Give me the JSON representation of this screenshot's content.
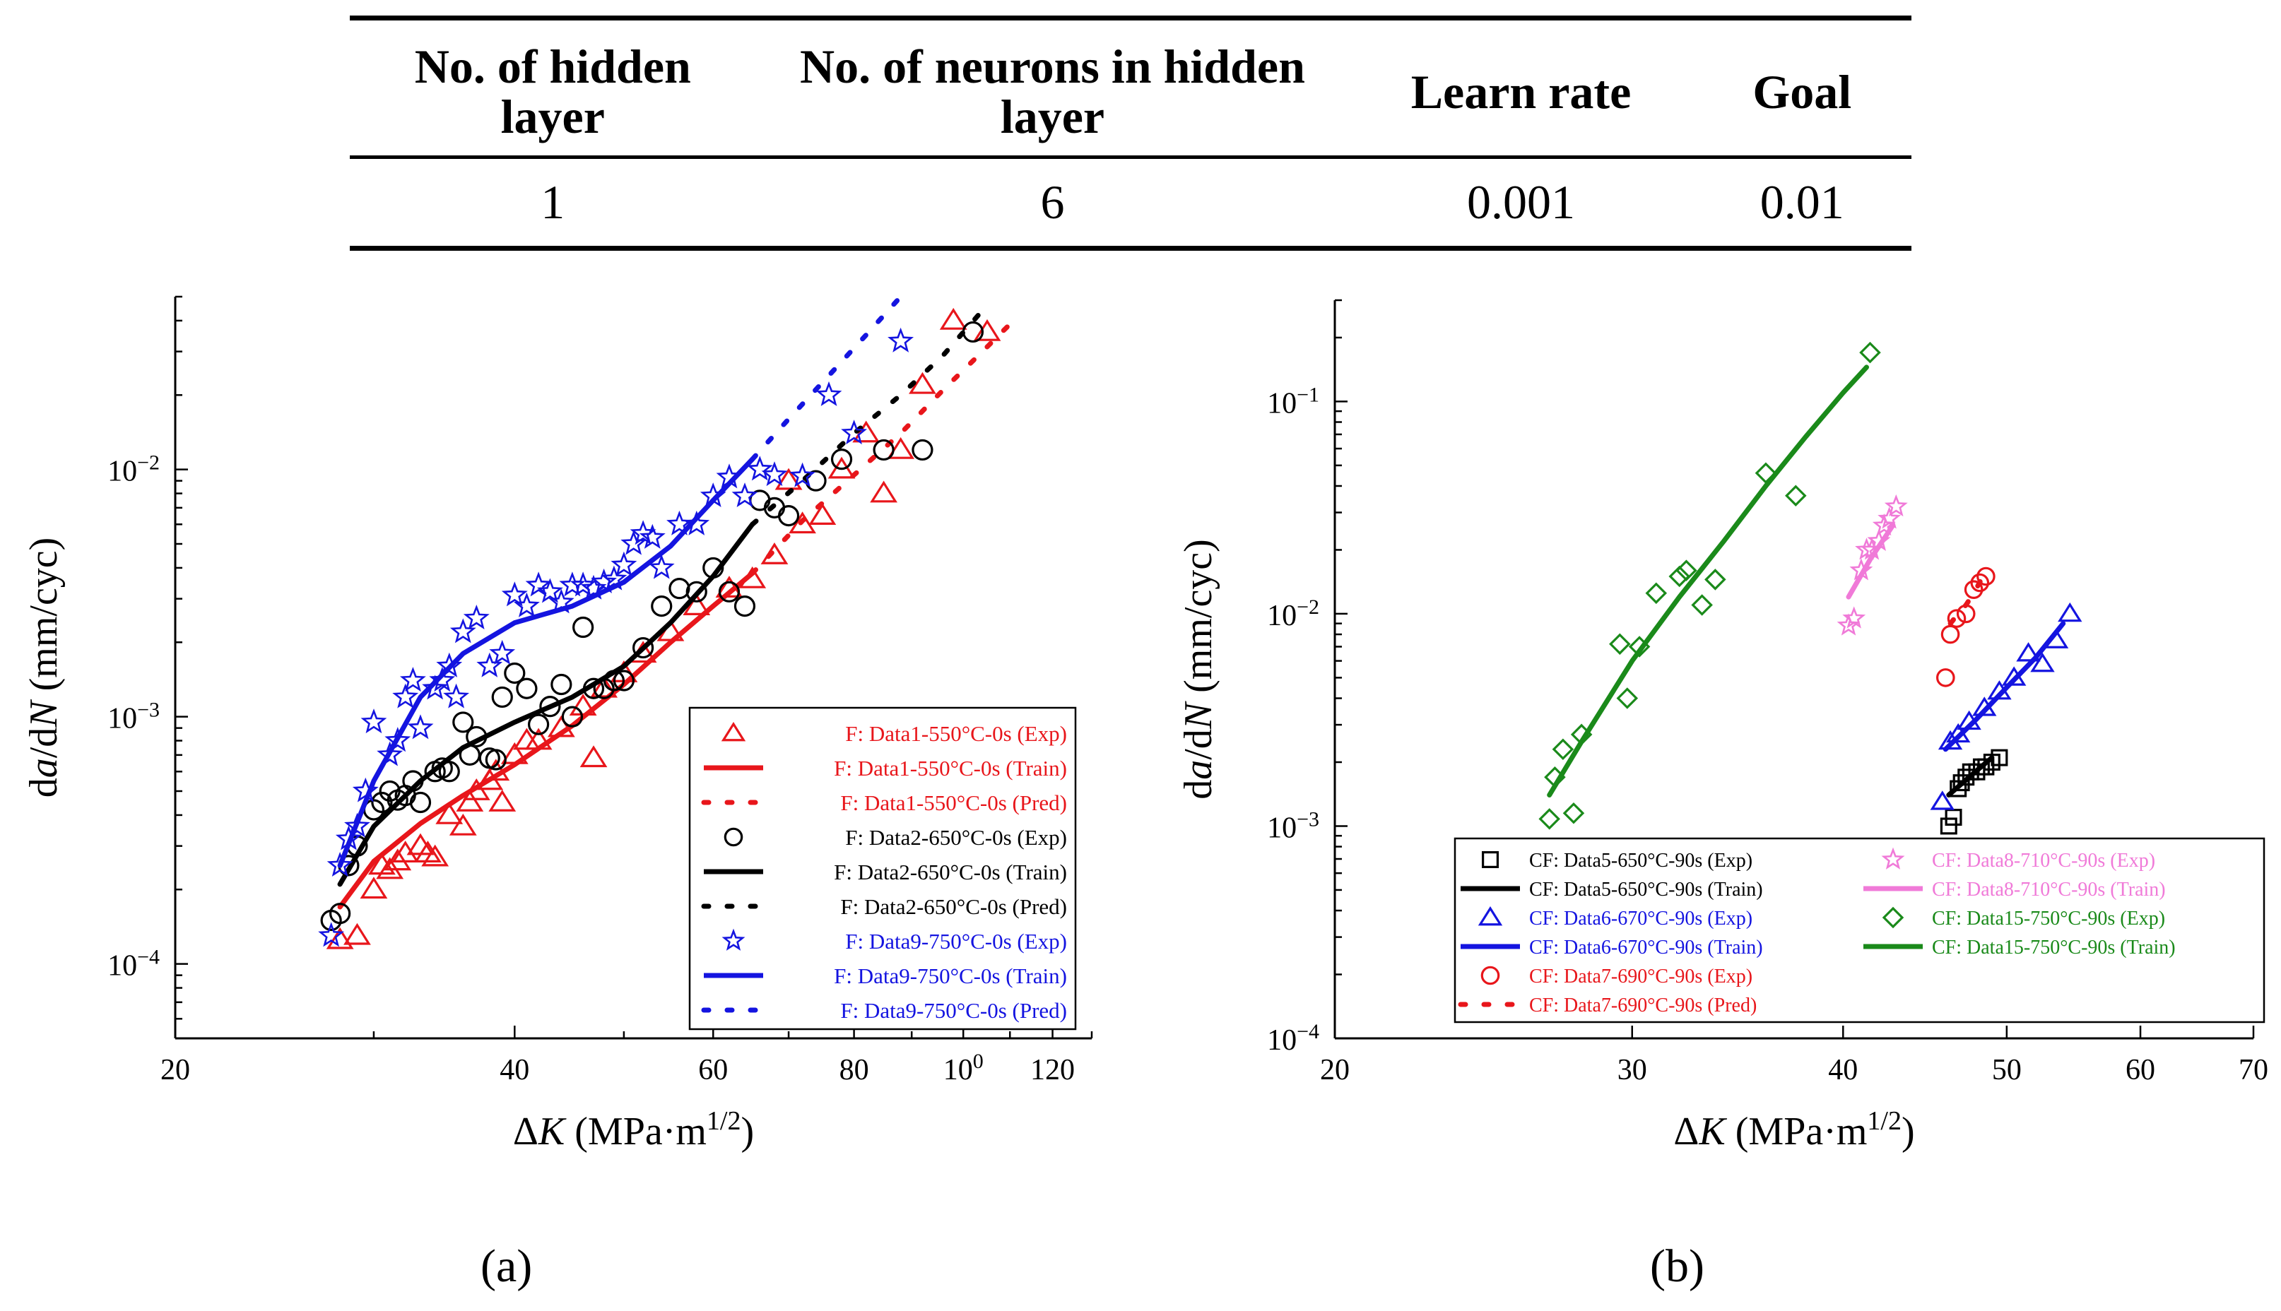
{
  "table": {
    "headers": [
      "No. of hidden layer",
      "No. of neurons in hidden layer",
      "Learn rate",
      "Goal"
    ],
    "row": [
      "1",
      "6",
      "0.001",
      "0.01"
    ]
  },
  "chart_data": [
    {
      "id": "a",
      "type": "scatter",
      "panel_label": "(a)",
      "xscale": "log",
      "yscale": "log",
      "xlim": [
        20,
        130
      ],
      "ylim": [
        5e-05,
        0.05
      ],
      "xticks": [
        20,
        40,
        60,
        80,
        100,
        120
      ],
      "yticks": [
        0.0001,
        0.001,
        0.01
      ],
      "ytick_labels": [
        "10−4",
        "10−3",
        "10−2"
      ],
      "xlabel": "ΔK (MPa·m1/2)",
      "ylabel": "da/dN (mm/cyc)",
      "legend_position": "bottom-right",
      "series": [
        {
          "name": "F: Data1-550°C-0s (Exp)",
          "kind": "scatter",
          "marker": "triangle",
          "color": "#e8161b",
          "x": [
            28,
            29,
            30,
            30.5,
            31,
            31.5,
            32,
            33,
            33.5,
            34,
            35,
            36,
            36.5,
            37,
            38,
            38.5,
            39,
            40,
            41,
            42,
            44,
            46,
            47,
            48,
            50,
            52,
            55,
            58,
            62,
            65,
            68,
            70,
            72,
            75,
            78,
            82,
            85,
            88,
            92,
            98,
            105
          ],
          "y": [
            0.000125,
            0.00013,
            0.0002,
            0.00025,
            0.00024,
            0.00026,
            0.00028,
            0.0003,
            0.00028,
            0.00027,
            0.0004,
            0.00036,
            0.00045,
            0.0005,
            0.00055,
            0.0006,
            0.00045,
            0.0007,
            0.0008,
            0.0008,
            0.0009,
            0.0011,
            0.00068,
            0.0013,
            0.0015,
            0.0018,
            0.0022,
            0.0028,
            0.0033,
            0.0036,
            0.0045,
            0.009,
            0.006,
            0.0065,
            0.01,
            0.014,
            0.008,
            0.012,
            0.022,
            0.04,
            0.036
          ]
        },
        {
          "name": "F: Data1-550°C-0s (Train)",
          "kind": "line",
          "color": "#e8161b",
          "x": [
            28,
            30,
            33,
            36,
            40,
            45,
            50,
            55,
            60,
            65
          ],
          "y": [
            0.00017,
            0.00026,
            0.00037,
            0.00048,
            0.00064,
            0.00092,
            0.00135,
            0.002,
            0.0028,
            0.0038
          ]
        },
        {
          "name": "F: Data1-550°C-0s (Pred)",
          "kind": "dotted",
          "color": "#e8161b",
          "x": [
            65,
            72,
            80,
            88,
            96,
            104,
            112
          ],
          "y": [
            0.0038,
            0.0062,
            0.0095,
            0.014,
            0.021,
            0.03,
            0.042
          ]
        },
        {
          "name": "F: Data2-650°C-0s (Exp)",
          "kind": "scatter",
          "marker": "circle",
          "color": "#000000",
          "x": [
            27.5,
            28,
            28.5,
            29,
            30,
            30.5,
            31,
            31.5,
            32,
            32.5,
            33,
            34,
            34.5,
            35,
            36,
            36.5,
            37,
            38,
            38.5,
            39,
            40,
            41,
            42,
            43,
            44,
            45,
            46,
            47,
            48,
            49,
            50,
            52,
            54,
            56,
            58,
            60,
            62,
            64,
            66,
            68,
            70,
            74,
            78,
            85,
            92,
            102
          ],
          "y": [
            0.00015,
            0.00016,
            0.00025,
            0.0003,
            0.00042,
            0.00045,
            0.0005,
            0.00046,
            0.00048,
            0.00055,
            0.00045,
            0.0006,
            0.00062,
            0.0006,
            0.00095,
            0.0007,
            0.00083,
            0.00068,
            0.00067,
            0.0012,
            0.0015,
            0.0013,
            0.00093,
            0.0011,
            0.00135,
            0.001,
            0.0023,
            0.0013,
            0.0013,
            0.0014,
            0.0014,
            0.0019,
            0.0028,
            0.0033,
            0.0032,
            0.004,
            0.0032,
            0.0028,
            0.0075,
            0.007,
            0.0065,
            0.009,
            0.011,
            0.012,
            0.012,
            0.036
          ]
        },
        {
          "name": "F: Data2-650°C-0s (Train)",
          "kind": "line",
          "color": "#000000",
          "x": [
            28,
            30,
            33,
            36,
            40,
            45,
            50,
            55,
            60,
            65
          ],
          "y": [
            0.00021,
            0.00036,
            0.00055,
            0.00075,
            0.00095,
            0.0012,
            0.0016,
            0.0024,
            0.0037,
            0.006
          ]
        },
        {
          "name": "F: Data2-650°C-0s (Pred)",
          "kind": "dotted",
          "color": "#000000",
          "x": [
            65,
            72,
            80,
            88,
            96,
            104
          ],
          "y": [
            0.006,
            0.009,
            0.014,
            0.02,
            0.029,
            0.044
          ]
        },
        {
          "name": "F: Data9-750°C-0s (Exp)",
          "kind": "scatter",
          "marker": "star",
          "color": "#1414e0",
          "x": [
            27.5,
            28,
            28.5,
            29,
            29.5,
            30,
            31,
            31.5,
            32,
            32.5,
            33,
            34,
            34.5,
            35,
            35.5,
            36,
            37,
            38,
            39,
            40,
            41,
            42,
            43,
            44,
            45,
            46,
            47,
            48,
            49,
            50,
            51,
            52,
            53,
            54,
            56,
            58,
            60,
            62,
            64,
            66,
            68,
            72,
            76,
            80,
            88
          ],
          "y": [
            0.00013,
            0.00025,
            0.00032,
            0.00036,
            0.0005,
            0.00095,
            0.0007,
            0.0008,
            0.0012,
            0.0014,
            0.0009,
            0.0013,
            0.0014,
            0.0016,
            0.0012,
            0.0022,
            0.0025,
            0.0016,
            0.0018,
            0.0031,
            0.0028,
            0.0034,
            0.0032,
            0.0029,
            0.0034,
            0.0034,
            0.0033,
            0.0035,
            0.0036,
            0.0041,
            0.005,
            0.0055,
            0.0053,
            0.004,
            0.006,
            0.006,
            0.0078,
            0.0093,
            0.0078,
            0.01,
            0.0095,
            0.0094,
            0.02,
            0.014,
            0.033
          ]
        },
        {
          "name": "F: Data9-750°C-0s (Train)",
          "kind": "line",
          "color": "#1414e0",
          "x": [
            28,
            30,
            33,
            36,
            40,
            45,
            50,
            55,
            60,
            65
          ],
          "y": [
            0.00025,
            0.00055,
            0.0012,
            0.0018,
            0.0024,
            0.0028,
            0.0035,
            0.0049,
            0.0075,
            0.011
          ]
        },
        {
          "name": "F: Data9-750°C-0s (Pred)",
          "kind": "dotted",
          "color": "#1414e0",
          "x": [
            65,
            70,
            76,
            82,
            88
          ],
          "y": [
            0.011,
            0.016,
            0.024,
            0.035,
            0.05
          ]
        }
      ]
    },
    {
      "id": "b",
      "type": "scatter",
      "panel_label": "(b)",
      "xscale": "log",
      "yscale": "log",
      "xlim": [
        20,
        70
      ],
      "ylim": [
        0.0001,
        0.3
      ],
      "xticks": [
        20,
        30,
        40,
        50,
        60,
        70
      ],
      "yticks": [
        0.0001,
        0.001,
        0.01,
        0.1
      ],
      "ytick_labels": [
        "10−4",
        "10−3",
        "10−2",
        "10−1"
      ],
      "xlabel": "ΔK (MPa·m1/2)",
      "ylabel": "da/dN (mm/cyc)",
      "legend_position": "bottom",
      "series": [
        {
          "name": "CF: Data5-650°C-90s (Exp)",
          "kind": "scatter",
          "marker": "square",
          "color": "#000000",
          "x": [
            46.2,
            46.5,
            46.8,
            47,
            47.3,
            47.6,
            48,
            48.3,
            48.6,
            49,
            49.5
          ],
          "y": [
            0.001,
            0.0011,
            0.0015,
            0.0016,
            0.0017,
            0.0018,
            0.0018,
            0.0019,
            0.0019,
            0.002,
            0.0021
          ]
        },
        {
          "name": "CF: Data5-650°C-90s (Train)",
          "kind": "line",
          "color": "#000000",
          "x": [
            46.2,
            47.5,
            49
          ],
          "y": [
            0.0014,
            0.0017,
            0.0021
          ]
        },
        {
          "name": "CF: Data6-670°C-90s (Exp)",
          "kind": "scatter",
          "marker": "triangle",
          "color": "#1414e0",
          "x": [
            45.8,
            46.3,
            46.8,
            47.5,
            48.5,
            49.5,
            50.5,
            51.5,
            52.5,
            53.5,
            54.5
          ],
          "y": [
            0.0013,
            0.0025,
            0.0027,
            0.0031,
            0.0036,
            0.0043,
            0.005,
            0.0065,
            0.0058,
            0.0075,
            0.01
          ]
        },
        {
          "name": "CF: Data6-670°C-90s (Train)",
          "kind": "line",
          "color": "#1414e0",
          "x": [
            46,
            48,
            50,
            52,
            54
          ],
          "y": [
            0.0023,
            0.0032,
            0.0045,
            0.0062,
            0.009
          ]
        },
        {
          "name": "CF: Data7-690°C-90s (Exp)",
          "kind": "scatter",
          "marker": "circle",
          "color": "#e8161b",
          "x": [
            46,
            46.3,
            46.7,
            47.3,
            47.8,
            48.2,
            48.6
          ],
          "y": [
            0.005,
            0.008,
            0.0095,
            0.01,
            0.013,
            0.014,
            0.015
          ]
        },
        {
          "name": "CF: Data7-690°C-90s (Pred)",
          "kind": "dotted",
          "color": "#e8161b",
          "x": [
            46.3,
            46.8,
            47.3,
            47.8,
            48.3
          ],
          "y": [
            0.009,
            0.01,
            0.011,
            0.0125,
            0.0145
          ]
        },
        {
          "name": "CF: Data8-710°C-90s (Exp)",
          "kind": "scatter",
          "marker": "star",
          "color": "#f07ad8",
          "x": [
            40.3,
            40.6,
            41,
            41.3,
            41.6,
            42,
            42.3,
            42.6,
            43
          ],
          "y": [
            0.0088,
            0.0095,
            0.016,
            0.02,
            0.02,
            0.022,
            0.026,
            0.028,
            0.032
          ]
        },
        {
          "name": "CF: Data8-710°C-90s (Train)",
          "kind": "line",
          "color": "#f07ad8",
          "x": [
            40.3,
            41.5,
            42.8
          ],
          "y": [
            0.012,
            0.018,
            0.026
          ]
        },
        {
          "name": "CF: Data15-750°C-90s (Exp)",
          "kind": "scatter",
          "marker": "diamond",
          "color": "#1a8a1a",
          "x": [
            26.8,
            27,
            27.3,
            27.7,
            28,
            29.5,
            29.8,
            30.3,
            31,
            32,
            32.3,
            33,
            33.6,
            36,
            37.5,
            41.5
          ],
          "y": [
            0.00108,
            0.0017,
            0.0023,
            0.00115,
            0.0027,
            0.0072,
            0.004,
            0.007,
            0.0125,
            0.015,
            0.016,
            0.011,
            0.0145,
            0.046,
            0.036,
            0.17
          ]
        },
        {
          "name": "CF: Data15-750°C-90s (Train)",
          "kind": "line",
          "color": "#1a8a1a",
          "x": [
            26.8,
            28,
            30,
            32,
            34,
            36,
            38,
            40,
            41.3
          ],
          "y": [
            0.0014,
            0.0025,
            0.006,
            0.012,
            0.022,
            0.04,
            0.068,
            0.11,
            0.145
          ]
        }
      ]
    }
  ]
}
